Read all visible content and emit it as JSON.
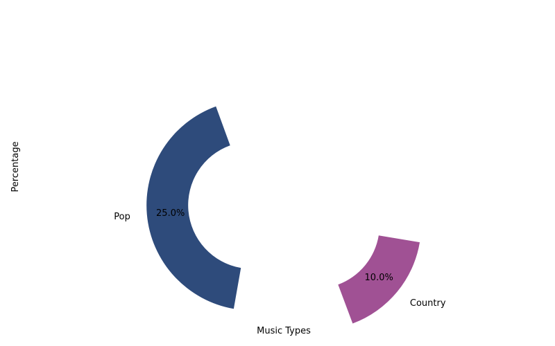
{
  "chart_data": {
    "type": "pie",
    "subtype": "donut",
    "xlabel": "Music Types",
    "ylabel": "Percentage",
    "slices": [
      {
        "label": "Pop",
        "value": 25.0,
        "pct_label": "25.0%",
        "color": "#2e4b7b"
      },
      {
        "label": "Country",
        "value": 10.0,
        "pct_label": "10.0%",
        "color": "#a05194"
      }
    ]
  }
}
